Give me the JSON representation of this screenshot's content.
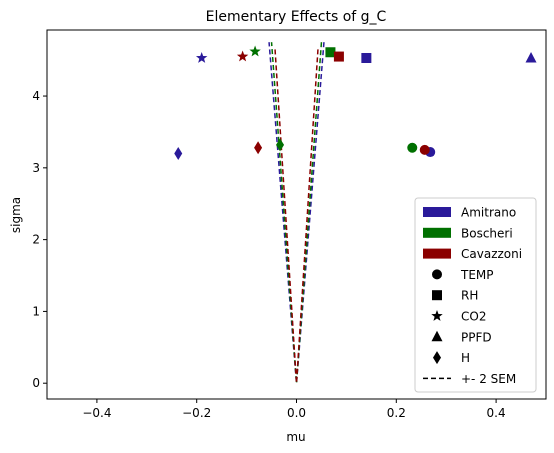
{
  "chart_data": {
    "type": "scatter",
    "title": "Elementary Effects of g_C",
    "xlabel": "mu",
    "ylabel": "sigma",
    "xlim": [
      -0.5,
      0.5
    ],
    "ylim": [
      -0.22,
      4.92
    ],
    "xticks": [
      -0.4,
      -0.2,
      0.0,
      0.2,
      0.4
    ],
    "xtick_labels": [
      "−0.4",
      "−0.2",
      "0.0",
      "0.2",
      "0.4"
    ],
    "yticks": [
      0,
      1,
      2,
      3,
      4
    ],
    "ytick_labels": [
      "0",
      "1",
      "2",
      "3",
      "4"
    ],
    "grid": false,
    "legend_position": "lower-right",
    "series": [
      {
        "name": "Amitrano",
        "color": "#2a1a9a",
        "points": [
          {
            "marker": "circle",
            "x": 0.268,
            "y": 3.22
          },
          {
            "marker": "square",
            "x": 0.14,
            "y": 4.53
          },
          {
            "marker": "star",
            "x": -0.19,
            "y": 4.53
          },
          {
            "marker": "triangle",
            "x": 0.47,
            "y": 4.53
          },
          {
            "marker": "diamond",
            "x": -0.237,
            "y": 3.2
          }
        ],
        "sem_band": [
          [
            0.055,
            4.75
          ],
          [
            0.0,
            0.0
          ],
          [
            -0.055,
            4.75
          ]
        ]
      },
      {
        "name": "Boscheri",
        "color": "#007000",
        "points": [
          {
            "marker": "circle",
            "x": 0.232,
            "y": 3.28
          },
          {
            "marker": "square",
            "x": 0.068,
            "y": 4.61
          },
          {
            "marker": "star",
            "x": -0.083,
            "y": 4.62
          },
          {
            "marker": "diamond",
            "x": -0.033,
            "y": 3.32
          }
        ],
        "sem_band": [
          [
            0.05,
            4.75
          ],
          [
            0.0,
            0.0
          ],
          [
            -0.05,
            4.75
          ]
        ]
      },
      {
        "name": "Cavazzoni",
        "color": "#8b0000",
        "points": [
          {
            "marker": "circle",
            "x": 0.257,
            "y": 3.25
          },
          {
            "marker": "square",
            "x": 0.085,
            "y": 4.55
          },
          {
            "marker": "star",
            "x": -0.108,
            "y": 4.55
          },
          {
            "marker": "diamond",
            "x": -0.077,
            "y": 3.28
          }
        ],
        "sem_band": [
          [
            0.043,
            4.65
          ],
          [
            0.0,
            0.0
          ],
          [
            -0.043,
            4.65
          ]
        ]
      }
    ],
    "legend": [
      {
        "kind": "patch",
        "label": "Amitrano",
        "color": "#2a1a9a"
      },
      {
        "kind": "patch",
        "label": "Boscheri",
        "color": "#007000"
      },
      {
        "kind": "patch",
        "label": "Cavazzoni",
        "color": "#8b0000"
      },
      {
        "kind": "marker",
        "marker": "circle",
        "label": "TEMP"
      },
      {
        "kind": "marker",
        "marker": "square",
        "label": "RH"
      },
      {
        "kind": "marker",
        "marker": "star",
        "label": "CO2"
      },
      {
        "kind": "marker",
        "marker": "triangle",
        "label": "PPFD"
      },
      {
        "kind": "marker",
        "marker": "diamond",
        "label": "H"
      },
      {
        "kind": "line",
        "style": "dashed",
        "label": "+- 2 SEM"
      }
    ]
  }
}
